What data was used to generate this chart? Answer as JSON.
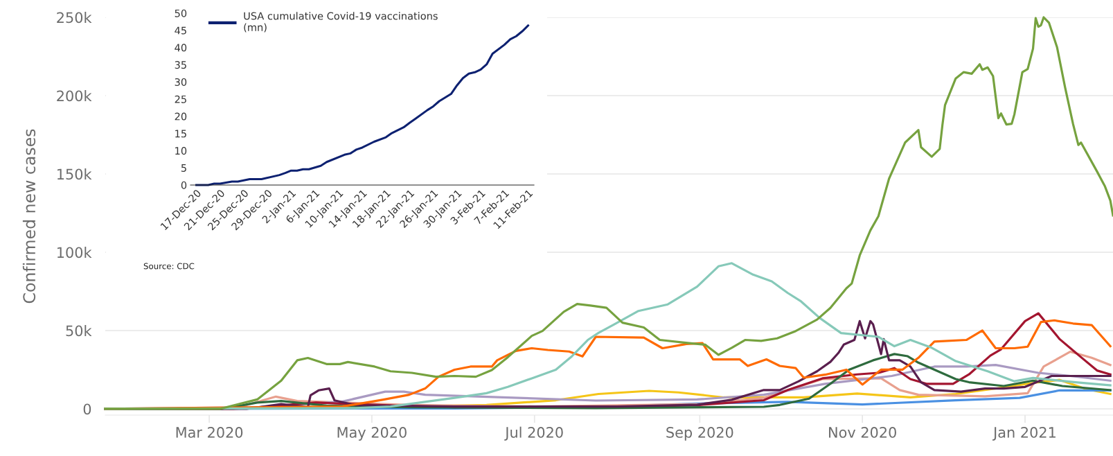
{
  "chart_data": [
    {
      "type": "line",
      "ylabel": "Confirmed new cases",
      "grid": "y",
      "xlim": [
        "2020-01-22",
        "2021-02-03"
      ],
      "ylim": [
        -4000,
        250000
      ],
      "xticks": [
        {
          "value": "2020-03-01",
          "label": "Mar 2020"
        },
        {
          "value": "2020-05-01",
          "label": "May 2020"
        },
        {
          "value": "2020-07-01",
          "label": "Jul 2020"
        },
        {
          "value": "2020-09-01",
          "label": "Sep 2020"
        },
        {
          "value": "2020-11-01",
          "label": "Nov 2020"
        },
        {
          "value": "2021-01-01",
          "label": "Jan 2021"
        }
      ],
      "yticks": [
        {
          "value": 0,
          "label": "0"
        },
        {
          "value": 50000,
          "label": "50k"
        },
        {
          "value": 100000,
          "label": "100k"
        },
        {
          "value": 150000,
          "label": "150k"
        },
        {
          "value": 200000,
          "label": "200k"
        },
        {
          "value": 250000,
          "label": "250k"
        }
      ],
      "series": [
        {
          "color": "#f5c518",
          "x": [
            "2020-01-22",
            "2020-05-01",
            "2020-06-13",
            "2020-07-09",
            "2020-07-25",
            "2020-08-13",
            "2020-08-24",
            "2020-09-10",
            "2020-09-28",
            "2020-10-10",
            "2020-10-30",
            "2020-11-19",
            "2020-12-06",
            "2020-12-24",
            "2021-01-06",
            "2021-01-14",
            "2021-01-24",
            "2021-02-02"
          ],
          "values": [
            0,
            1000,
            2500,
            5500,
            9500,
            11500,
            10500,
            7300,
            7300,
            7300,
            9800,
            7300,
            9500,
            13700,
            17000,
            18500,
            12600,
            9500
          ]
        },
        {
          "color": "#4a90e2",
          "x": [
            "2020-01-22",
            "2020-06-01",
            "2020-07-24",
            "2020-08-31",
            "2020-10-04",
            "2020-11-01",
            "2020-12-06",
            "2020-12-30",
            "2021-01-14",
            "2021-02-02"
          ],
          "values": [
            0,
            300,
            1300,
            3400,
            4500,
            2800,
            5500,
            7000,
            11800,
            11800
          ]
        },
        {
          "color": "#e8a08e",
          "x": [
            "2020-01-22",
            "2020-03-10",
            "2020-03-26",
            "2020-04-03",
            "2020-04-20",
            "2020-05-15",
            "2020-07-01",
            "2020-09-01",
            "2020-09-25",
            "2020-10-17",
            "2020-11-08",
            "2020-11-15",
            "2020-11-22",
            "2020-12-17",
            "2021-01-02",
            "2021-01-08",
            "2021-01-18",
            "2021-01-26",
            "2021-02-02"
          ],
          "values": [
            0,
            0,
            7800,
            5000,
            4000,
            2500,
            1500,
            3000,
            7000,
            19000,
            19500,
            12000,
            9000,
            8000,
            10000,
            27000,
            36500,
            32600,
            28000
          ]
        },
        {
          "color": "#a99ac2",
          "x": [
            "2020-01-22",
            "2020-03-20",
            "2020-04-20",
            "2020-05-06",
            "2020-05-13",
            "2020-05-21",
            "2020-06-27",
            "2020-07-24",
            "2020-08-31",
            "2020-09-25",
            "2020-10-18",
            "2020-11-12",
            "2020-11-28",
            "2020-12-10",
            "2020-12-21",
            "2021-01-06",
            "2021-01-18",
            "2021-02-02"
          ],
          "values": [
            0,
            1000,
            4700,
            11000,
            11000,
            9000,
            6900,
            5300,
            6000,
            9000,
            16000,
            21000,
            27000,
            27000,
            28000,
            23000,
            21000,
            18000
          ]
        },
        {
          "color": "#a3152f",
          "x": [
            "2020-01-22",
            "2020-03-10",
            "2020-03-20",
            "2020-04-10",
            "2020-05-10",
            "2020-06-01",
            "2020-08-01",
            "2020-09-01",
            "2020-09-25",
            "2020-10-04",
            "2020-10-17",
            "2020-10-30",
            "2020-11-07",
            "2020-11-13",
            "2020-11-19",
            "2020-11-25",
            "2020-12-05",
            "2020-12-11",
            "2020-12-19",
            "2020-12-23",
            "2021-01-01",
            "2021-01-06",
            "2021-01-14",
            "2021-01-22",
            "2021-01-28",
            "2021-02-02"
          ],
          "values": [
            0,
            0,
            1000,
            4000,
            2000,
            1000,
            1000,
            2500,
            5500,
            12000,
            19500,
            22000,
            23000,
            26000,
            19000,
            16000,
            16000,
            22000,
            34000,
            38000,
            56000,
            61000,
            44500,
            33000,
            24500,
            22000
          ]
        },
        {
          "color": "#2e6b3e",
          "x": [
            "2020-01-22",
            "2020-03-06",
            "2020-03-19",
            "2020-03-28",
            "2020-04-14",
            "2020-05-15",
            "2020-07-24",
            "2020-09-25",
            "2020-10-01",
            "2020-10-12",
            "2020-10-20",
            "2020-10-27",
            "2020-11-05",
            "2020-11-13",
            "2020-11-18",
            "2020-11-22",
            "2020-12-06",
            "2020-12-11",
            "2020-12-24",
            "2021-01-04",
            "2021-01-15",
            "2021-02-02"
          ],
          "values": [
            0,
            0,
            4000,
            5000,
            2000,
            1000,
            500,
            1300,
            2500,
            6500,
            16000,
            25000,
            31000,
            35000,
            33600,
            29500,
            19000,
            17000,
            14600,
            18000,
            14600,
            12000
          ]
        },
        {
          "color": "#5a1f4e",
          "x": [
            "2020-01-22",
            "2020-03-15",
            "2020-03-28",
            "2020-04-07",
            "2020-04-08",
            "2020-04-11",
            "2020-04-15",
            "2020-04-17",
            "2020-04-25",
            "2020-06-01",
            "2020-08-01",
            "2020-08-31",
            "2020-09-13",
            "2020-09-25",
            "2020-10-01",
            "2020-10-08",
            "2020-10-15",
            "2020-10-20",
            "2020-10-23",
            "2020-10-25",
            "2020-10-29",
            "2020-10-31",
            "2020-11-02",
            "2020-11-04",
            "2020-11-05",
            "2020-11-08",
            "2020-11-09",
            "2020-11-11",
            "2020-11-15",
            "2020-11-19",
            "2020-11-23",
            "2020-11-28",
            "2020-12-08",
            "2020-12-17",
            "2020-12-24",
            "2021-01-01",
            "2021-01-11",
            "2021-01-21",
            "2021-02-02"
          ],
          "values": [
            0,
            0,
            3000,
            1000,
            8700,
            11800,
            13000,
            5400,
            2300,
            1500,
            1500,
            2600,
            5800,
            12000,
            12000,
            17500,
            24000,
            30000,
            35700,
            41000,
            44000,
            56000,
            45000,
            56000,
            54000,
            35000,
            44500,
            31000,
            31000,
            27000,
            17000,
            12000,
            11000,
            13000,
            13000,
            14000,
            21000,
            21000,
            21000
          ]
        },
        {
          "color": "#ff6a00",
          "x": [
            "2020-01-22",
            "2020-04-20",
            "2020-05-05",
            "2020-05-15",
            "2020-05-21",
            "2020-05-26",
            "2020-06-01",
            "2020-06-07",
            "2020-06-15",
            "2020-06-17",
            "2020-06-24",
            "2020-06-30",
            "2020-07-06",
            "2020-07-14",
            "2020-07-19",
            "2020-07-24",
            "2020-08-11",
            "2020-08-18",
            "2020-08-27",
            "2020-09-02",
            "2020-09-06",
            "2020-09-16",
            "2020-09-19",
            "2020-09-26",
            "2020-10-01",
            "2020-10-07",
            "2020-10-10",
            "2020-10-18",
            "2020-10-26",
            "2020-11-01",
            "2020-11-08",
            "2020-11-16",
            "2020-11-22",
            "2020-11-28",
            "2020-12-10",
            "2020-12-16",
            "2020-12-21",
            "2020-12-28",
            "2021-01-02",
            "2021-01-07",
            "2021-01-12",
            "2021-01-19",
            "2021-01-26",
            "2021-02-02"
          ],
          "values": [
            0,
            1500,
            5800,
            9000,
            13000,
            20500,
            25000,
            27000,
            27000,
            31000,
            37000,
            38700,
            37600,
            36600,
            33500,
            46000,
            45500,
            38700,
            41400,
            42000,
            31600,
            31600,
            27400,
            31600,
            27400,
            26000,
            19900,
            21800,
            25000,
            15500,
            25000,
            25000,
            32600,
            43000,
            44000,
            50000,
            38700,
            38700,
            39700,
            55500,
            56500,
            54500,
            53500,
            40000
          ]
        },
        {
          "color": "#86c9b9",
          "x": [
            "2020-01-22",
            "2020-04-25",
            "2020-05-08",
            "2020-05-19",
            "2020-06-01",
            "2020-06-13",
            "2020-06-21",
            "2020-06-30",
            "2020-07-09",
            "2020-07-15",
            "2020-07-21",
            "2020-07-25",
            "2020-07-31",
            "2020-08-09",
            "2020-08-20",
            "2020-08-31",
            "2020-09-08",
            "2020-09-13",
            "2020-09-21",
            "2020-09-28",
            "2020-10-04",
            "2020-10-09",
            "2020-10-16",
            "2020-10-24",
            "2020-11-07",
            "2020-11-13",
            "2020-11-19",
            "2020-11-27",
            "2020-12-06",
            "2020-12-18",
            "2020-12-28",
            "2021-01-04",
            "2021-01-20",
            "2021-02-02"
          ],
          "values": [
            0,
            500,
            1500,
            4000,
            7000,
            10000,
            14000,
            19500,
            25000,
            33500,
            44000,
            48500,
            54000,
            62500,
            66700,
            78000,
            91000,
            93000,
            85700,
            81400,
            74000,
            68600,
            58000,
            48400,
            46000,
            40000,
            44000,
            39000,
            30500,
            24000,
            17600,
            19700,
            17000,
            15000
          ]
        },
        {
          "color": "#76a23f",
          "x": [
            "2020-01-22",
            "2020-03-05",
            "2020-03-19",
            "2020-03-28",
            "2020-04-03",
            "2020-04-07",
            "2020-04-14",
            "2020-04-19",
            "2020-04-22",
            "2020-05-02",
            "2020-05-08",
            "2020-05-16",
            "2020-05-25",
            "2020-06-01",
            "2020-06-09",
            "2020-06-15",
            "2020-06-21",
            "2020-06-30",
            "2020-07-04",
            "2020-07-12",
            "2020-07-17",
            "2020-07-22",
            "2020-07-28",
            "2020-08-03",
            "2020-08-11",
            "2020-08-17",
            "2020-08-28",
            "2020-09-03",
            "2020-09-08",
            "2020-09-13",
            "2020-09-18",
            "2020-09-24",
            "2020-09-30",
            "2020-10-07",
            "2020-10-15",
            "2020-10-20",
            "2020-10-26",
            "2020-10-28",
            "2020-10-31",
            "2020-11-04",
            "2020-11-07",
            "2020-11-11",
            "2020-11-17",
            "2020-11-22",
            "2020-11-23",
            "2020-11-27",
            "2020-11-30",
            "2020-12-01",
            "2020-12-02",
            "2020-12-06",
            "2020-12-09",
            "2020-12-12",
            "2020-12-15",
            "2020-12-16",
            "2020-12-18",
            "2020-12-20",
            "2020-12-22",
            "2020-12-23",
            "2020-12-25",
            "2020-12-27",
            "2020-12-28",
            "2020-12-31",
            "2021-01-02",
            "2021-01-04",
            "2021-01-05",
            "2021-01-06",
            "2021-01-07",
            "2021-01-08",
            "2021-01-10",
            "2021-01-13",
            "2021-01-16",
            "2021-01-19",
            "2021-01-21",
            "2021-01-22",
            "2021-01-28",
            "2021-01-31",
            "2021-02-02",
            "2021-02-03"
          ],
          "values": [
            0,
            0,
            6000,
            18000,
            31000,
            32500,
            28600,
            28600,
            29900,
            27000,
            24000,
            23000,
            20500,
            21000,
            20500,
            24800,
            33000,
            46600,
            49700,
            62000,
            67000,
            66000,
            64500,
            55000,
            52000,
            44000,
            42000,
            41000,
            34500,
            39000,
            44000,
            43400,
            45000,
            49700,
            57000,
            64500,
            77000,
            80000,
            98000,
            114000,
            123000,
            147000,
            170000,
            178000,
            167000,
            161000,
            166000,
            181000,
            194000,
            211000,
            215000,
            214000,
            220000,
            216500,
            218000,
            212500,
            185600,
            188600,
            181600,
            182000,
            188000,
            215000,
            217000,
            230000,
            249500,
            244000,
            245000,
            250000,
            246500,
            231000,
            205500,
            182000,
            168500,
            170000,
            151600,
            142000,
            133000,
            123500
          ]
        }
      ]
    },
    {
      "type": "line",
      "legend": "top left",
      "xlim": [
        "2020-12-16",
        "2021-02-12"
      ],
      "ylim": [
        0,
        50
      ],
      "annotations": [
        "Source: CDC"
      ],
      "yticks": [
        0,
        5,
        10,
        15,
        20,
        25,
        30,
        35,
        40,
        45,
        50
      ],
      "xticks": [
        {
          "value": "2020-12-17",
          "label": "17-Dec-20"
        },
        {
          "value": "2020-12-21",
          "label": "21-Dec-20"
        },
        {
          "value": "2020-12-25",
          "label": "25-Dec-20"
        },
        {
          "value": "2020-12-29",
          "label": "29-Dec-20"
        },
        {
          "value": "2021-01-02",
          "label": "2-Jan-21"
        },
        {
          "value": "2021-01-06",
          "label": "6-Jan-21"
        },
        {
          "value": "2021-01-10",
          "label": "10-Jan-21"
        },
        {
          "value": "2021-01-14",
          "label": "14-Jan-21"
        },
        {
          "value": "2021-01-18",
          "label": "18-Jan-21"
        },
        {
          "value": "2021-01-22",
          "label": "22-Jan-21"
        },
        {
          "value": "2021-01-26",
          "label": "26-Jan-21"
        },
        {
          "value": "2021-01-30",
          "label": "30-Jan-21"
        },
        {
          "value": "2021-02-03",
          "label": "3-Feb-21"
        },
        {
          "value": "2021-02-07",
          "label": "7-Feb-21"
        },
        {
          "value": "2021-02-11",
          "label": "11-Feb-21"
        }
      ],
      "series": [
        {
          "name": "USA cumulative Covid-19 vaccinations\n(mn)",
          "color": "#0d2171",
          "x": [
            "2020-12-17",
            "2020-12-19",
            "2020-12-20",
            "2020-12-21",
            "2020-12-23",
            "2020-12-24",
            "2020-12-26",
            "2020-12-28",
            "2020-12-31",
            "2021-01-01",
            "2021-01-02",
            "2021-01-03",
            "2021-01-04",
            "2021-01-05",
            "2021-01-07",
            "2021-01-08",
            "2021-01-11",
            "2021-01-12",
            "2021-01-13",
            "2021-01-14",
            "2021-01-16",
            "2021-01-18",
            "2021-01-19",
            "2021-01-21",
            "2021-01-22",
            "2021-01-23",
            "2021-01-25",
            "2021-01-26",
            "2021-01-27",
            "2021-01-29",
            "2021-01-30",
            "2021-01-31",
            "2021-02-01",
            "2021-02-02",
            "2021-02-03",
            "2021-02-04",
            "2021-02-05",
            "2021-02-07",
            "2021-02-08",
            "2021-02-09",
            "2021-02-10",
            "2021-02-11"
          ],
          "values": [
            0,
            0,
            0.4,
            0.4,
            1.0,
            1.0,
            1.7,
            1.7,
            2.9,
            3.5,
            4.2,
            4.2,
            4.6,
            4.6,
            5.6,
            6.7,
            8.8,
            9.2,
            10.3,
            10.9,
            12.6,
            13.9,
            15.1,
            16.8,
            18.1,
            19.3,
            21.8,
            22.9,
            24.4,
            26.5,
            29,
            31.1,
            32.4,
            32.8,
            33.6,
            35.1,
            38.2,
            40.8,
            42.4,
            43.3,
            44.7,
            46.4
          ]
        }
      ]
    }
  ]
}
